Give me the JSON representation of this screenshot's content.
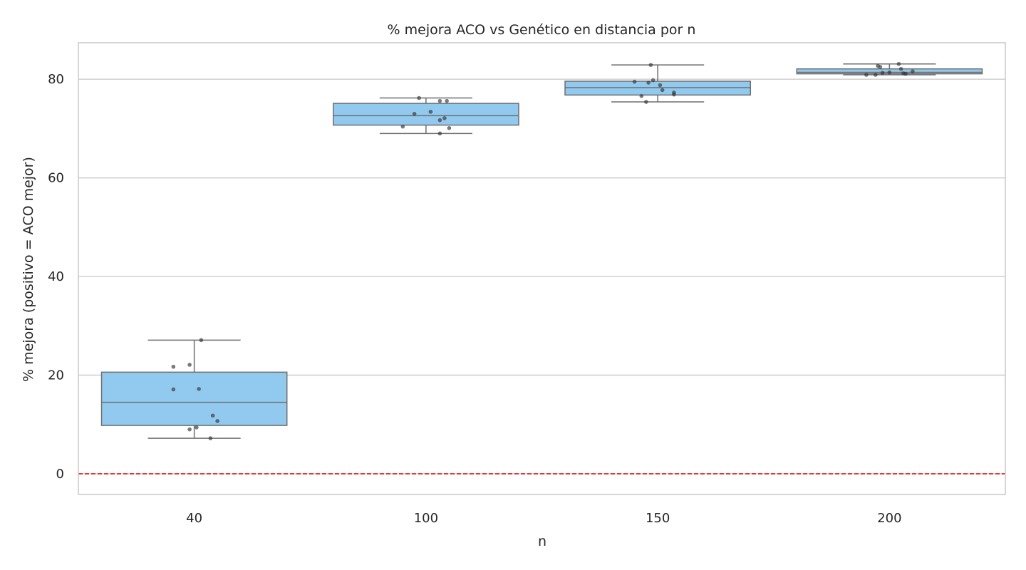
{
  "chart_data": {
    "type": "box",
    "title": "% mejora ACO vs Genético en distancia por n",
    "xlabel": "n",
    "ylabel": "% mejora (positivo = ACO mejor)",
    "categories": [
      "40",
      "100",
      "150",
      "200"
    ],
    "ylim": [
      -4.2,
      87.4
    ],
    "yticks": [
      0,
      20,
      40,
      60,
      80
    ],
    "grid": "y",
    "box_color": "#92CAEF",
    "box_edge_color": "#6e6e6e",
    "reference_line": {
      "y": 0,
      "color": "#e31a1c",
      "style": "dashed"
    },
    "boxes": [
      {
        "category": "40",
        "min": 7.2,
        "q1": 9.8,
        "median": 14.5,
        "q3": 20.6,
        "max": 27.1
      },
      {
        "category": "100",
        "min": 69.0,
        "q1": 70.7,
        "median": 72.6,
        "q3": 75.1,
        "max": 76.2
      },
      {
        "category": "150",
        "min": 75.4,
        "q1": 76.8,
        "median": 78.3,
        "q3": 79.6,
        "max": 82.9
      },
      {
        "category": "200",
        "min": 80.9,
        "q1": 81.1,
        "median": 81.4,
        "q3": 82.1,
        "max": 83.1
      }
    ],
    "points": [
      {
        "category": "40",
        "values": [
          27.1,
          22.1,
          21.7,
          17.2,
          17.1,
          11.8,
          10.7,
          9.4,
          9.0,
          7.2
        ],
        "jitter": [
          0.03,
          -0.02,
          -0.09,
          0.02,
          -0.09,
          0.08,
          0.1,
          0.01,
          -0.02,
          0.07
        ]
      },
      {
        "category": "100",
        "values": [
          76.2,
          75.6,
          75.6,
          73.4,
          73.0,
          72.1,
          71.7,
          70.4,
          70.1,
          69.0
        ],
        "jitter": [
          -0.03,
          0.06,
          0.09,
          0.02,
          -0.05,
          0.08,
          0.06,
          -0.1,
          0.1,
          0.06
        ]
      },
      {
        "category": "150",
        "values": [
          82.9,
          79.8,
          79.5,
          79.3,
          78.8,
          77.8,
          77.3,
          76.9,
          76.6,
          75.4
        ],
        "jitter": [
          -0.03,
          -0.02,
          -0.1,
          -0.04,
          0.01,
          0.02,
          0.07,
          0.07,
          -0.07,
          -0.05
        ]
      },
      {
        "category": "200",
        "values": [
          83.1,
          82.7,
          82.5,
          82.1,
          81.6,
          81.4,
          81.3,
          81.2,
          81.1,
          80.9,
          80.9
        ],
        "jitter": [
          0.04,
          -0.05,
          -0.04,
          0.05,
          0.1,
          0.0,
          -0.03,
          0.06,
          0.07,
          -0.1,
          -0.06
        ]
      }
    ]
  }
}
